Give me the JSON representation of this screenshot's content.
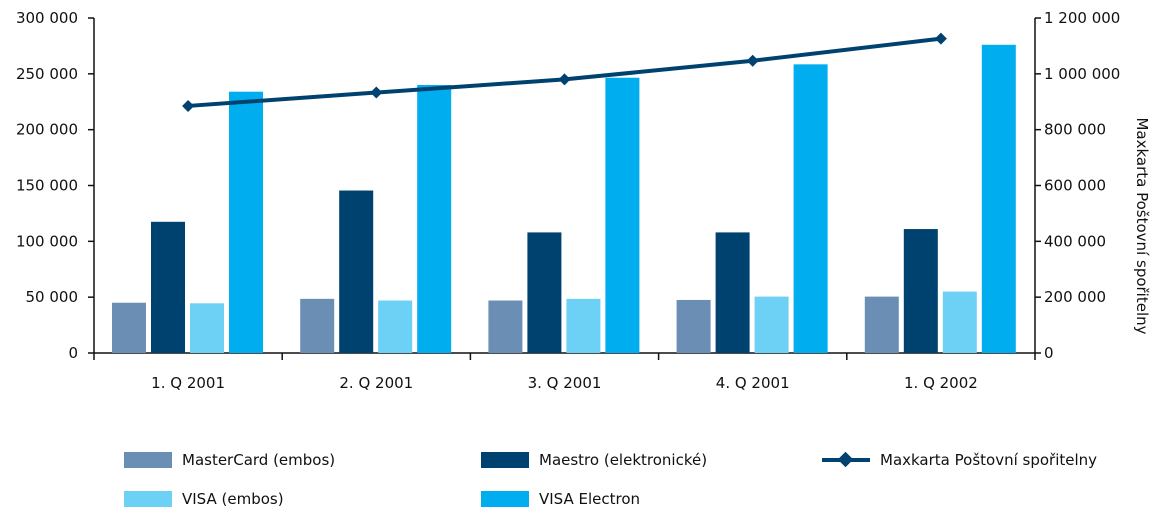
{
  "chart_data": {
    "type": "bar",
    "categories": [
      "1. Q 2001",
      "2. Q 2001",
      "3. Q 2001",
      "4. Q 2001",
      "1. Q 2002"
    ],
    "series": [
      {
        "name": "MasterCard (embos)",
        "axis": "left",
        "color": "#6b8fb4",
        "values": [
          45000,
          48500,
          47000,
          47500,
          50500
        ]
      },
      {
        "name": "Maestro (elektronické)",
        "axis": "left",
        "color": "#00426f",
        "values": [
          117500,
          145500,
          108000,
          108000,
          111000
        ]
      },
      {
        "name": "VISA (embos)",
        "axis": "left",
        "color": "#6dd0f5",
        "values": [
          44500,
          47000,
          48500,
          50500,
          55000
        ]
      },
      {
        "name": "VISA Electron",
        "axis": "left",
        "color": "#00aeef",
        "values": [
          234000,
          240000,
          246500,
          258500,
          276000
        ]
      },
      {
        "name": "Maxkarta Poštovní spořitelny",
        "type": "line",
        "axis": "right",
        "color": "#00426f",
        "values": [
          885000,
          933000,
          980000,
          1047000,
          1126000
        ]
      }
    ],
    "y_left": {
      "ylim": [
        0,
        300000
      ],
      "ticks": [
        "0",
        "50 000",
        "100 000",
        "150 000",
        "200 000",
        "250 000",
        "300 000"
      ]
    },
    "y_right": {
      "label": "Maxkarta Poštovní spořitelny",
      "ylim": [
        0,
        1200000
      ],
      "ticks": [
        "0",
        "200 000",
        "400 000",
        "600 000",
        "800 000",
        "1 000 000",
        "1 200 000"
      ]
    },
    "grid": false,
    "legend_position": "bottom"
  }
}
